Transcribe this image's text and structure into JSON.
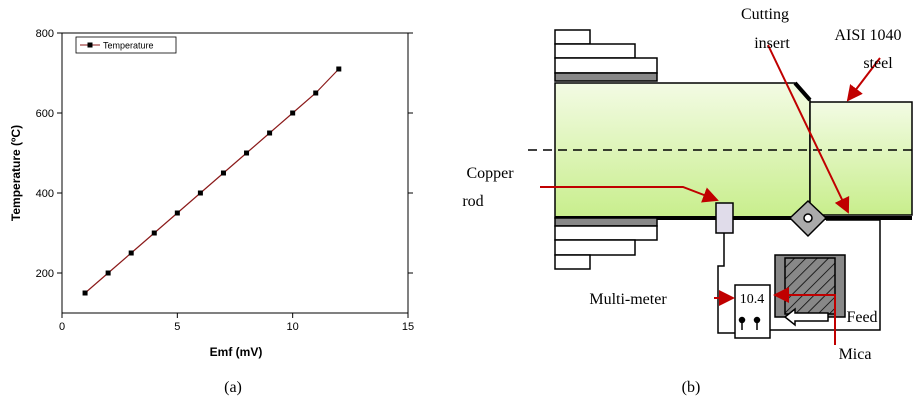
{
  "chart_data": {
    "type": "line",
    "x_label": "Emf (mV)",
    "y_label": "Temperature (ºC)",
    "x": [
      1,
      2,
      3,
      4,
      5,
      6,
      7,
      8,
      9,
      10,
      11,
      12
    ],
    "series": [
      {
        "name": "Temperature",
        "color": "#8b1a1a",
        "values": [
          150,
          200,
          250,
          300,
          350,
          400,
          450,
          500,
          550,
          600,
          650,
          710
        ]
      }
    ],
    "xlim": [
      0,
      15
    ],
    "xticks": [
      0,
      5,
      10,
      15
    ],
    "ylim": [
      100,
      800
    ],
    "yticks": [
      200,
      400,
      600,
      800
    ],
    "legend": "upper-left",
    "caption": "(a)"
  },
  "diagram": {
    "caption": "(b)",
    "labels": {
      "cutting_insert": [
        "Cutting",
        "insert"
      ],
      "steel": [
        "AISI 1040",
        "steel"
      ],
      "copper_rod": [
        "Copper",
        "rod"
      ],
      "multimeter": "Multi-meter",
      "reading": "10.4",
      "feed": "Feed",
      "mica": "Mica"
    }
  }
}
